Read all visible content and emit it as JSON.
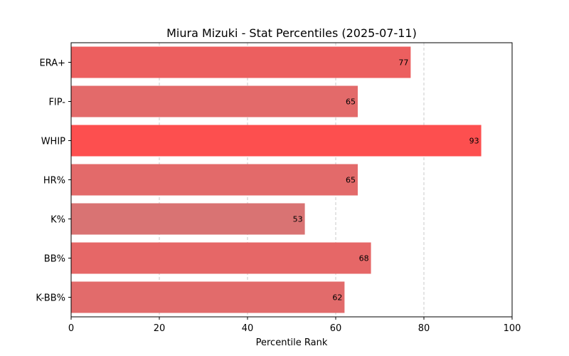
{
  "chart_data": {
    "type": "bar",
    "orientation": "horizontal",
    "title": "Miura Mizuki - Stat Percentiles (2025-07-11)",
    "xlabel": "Percentile Rank",
    "ylabel": "",
    "xlim": [
      0,
      100
    ],
    "xticks": [
      0,
      20,
      40,
      60,
      80,
      100
    ],
    "grid": "x-dashed",
    "categories": [
      "ERA+",
      "FIP-",
      "WHIP",
      "HR%",
      "K%",
      "BB%",
      "K-BB%"
    ],
    "values": [
      77,
      65,
      93,
      65,
      53,
      68,
      62
    ],
    "colors": [
      "#ec5f5f",
      "#e36a6a",
      "#fd4f4f",
      "#e36a6a",
      "#d97373",
      "#e66767",
      "#e26b6b"
    ]
  }
}
